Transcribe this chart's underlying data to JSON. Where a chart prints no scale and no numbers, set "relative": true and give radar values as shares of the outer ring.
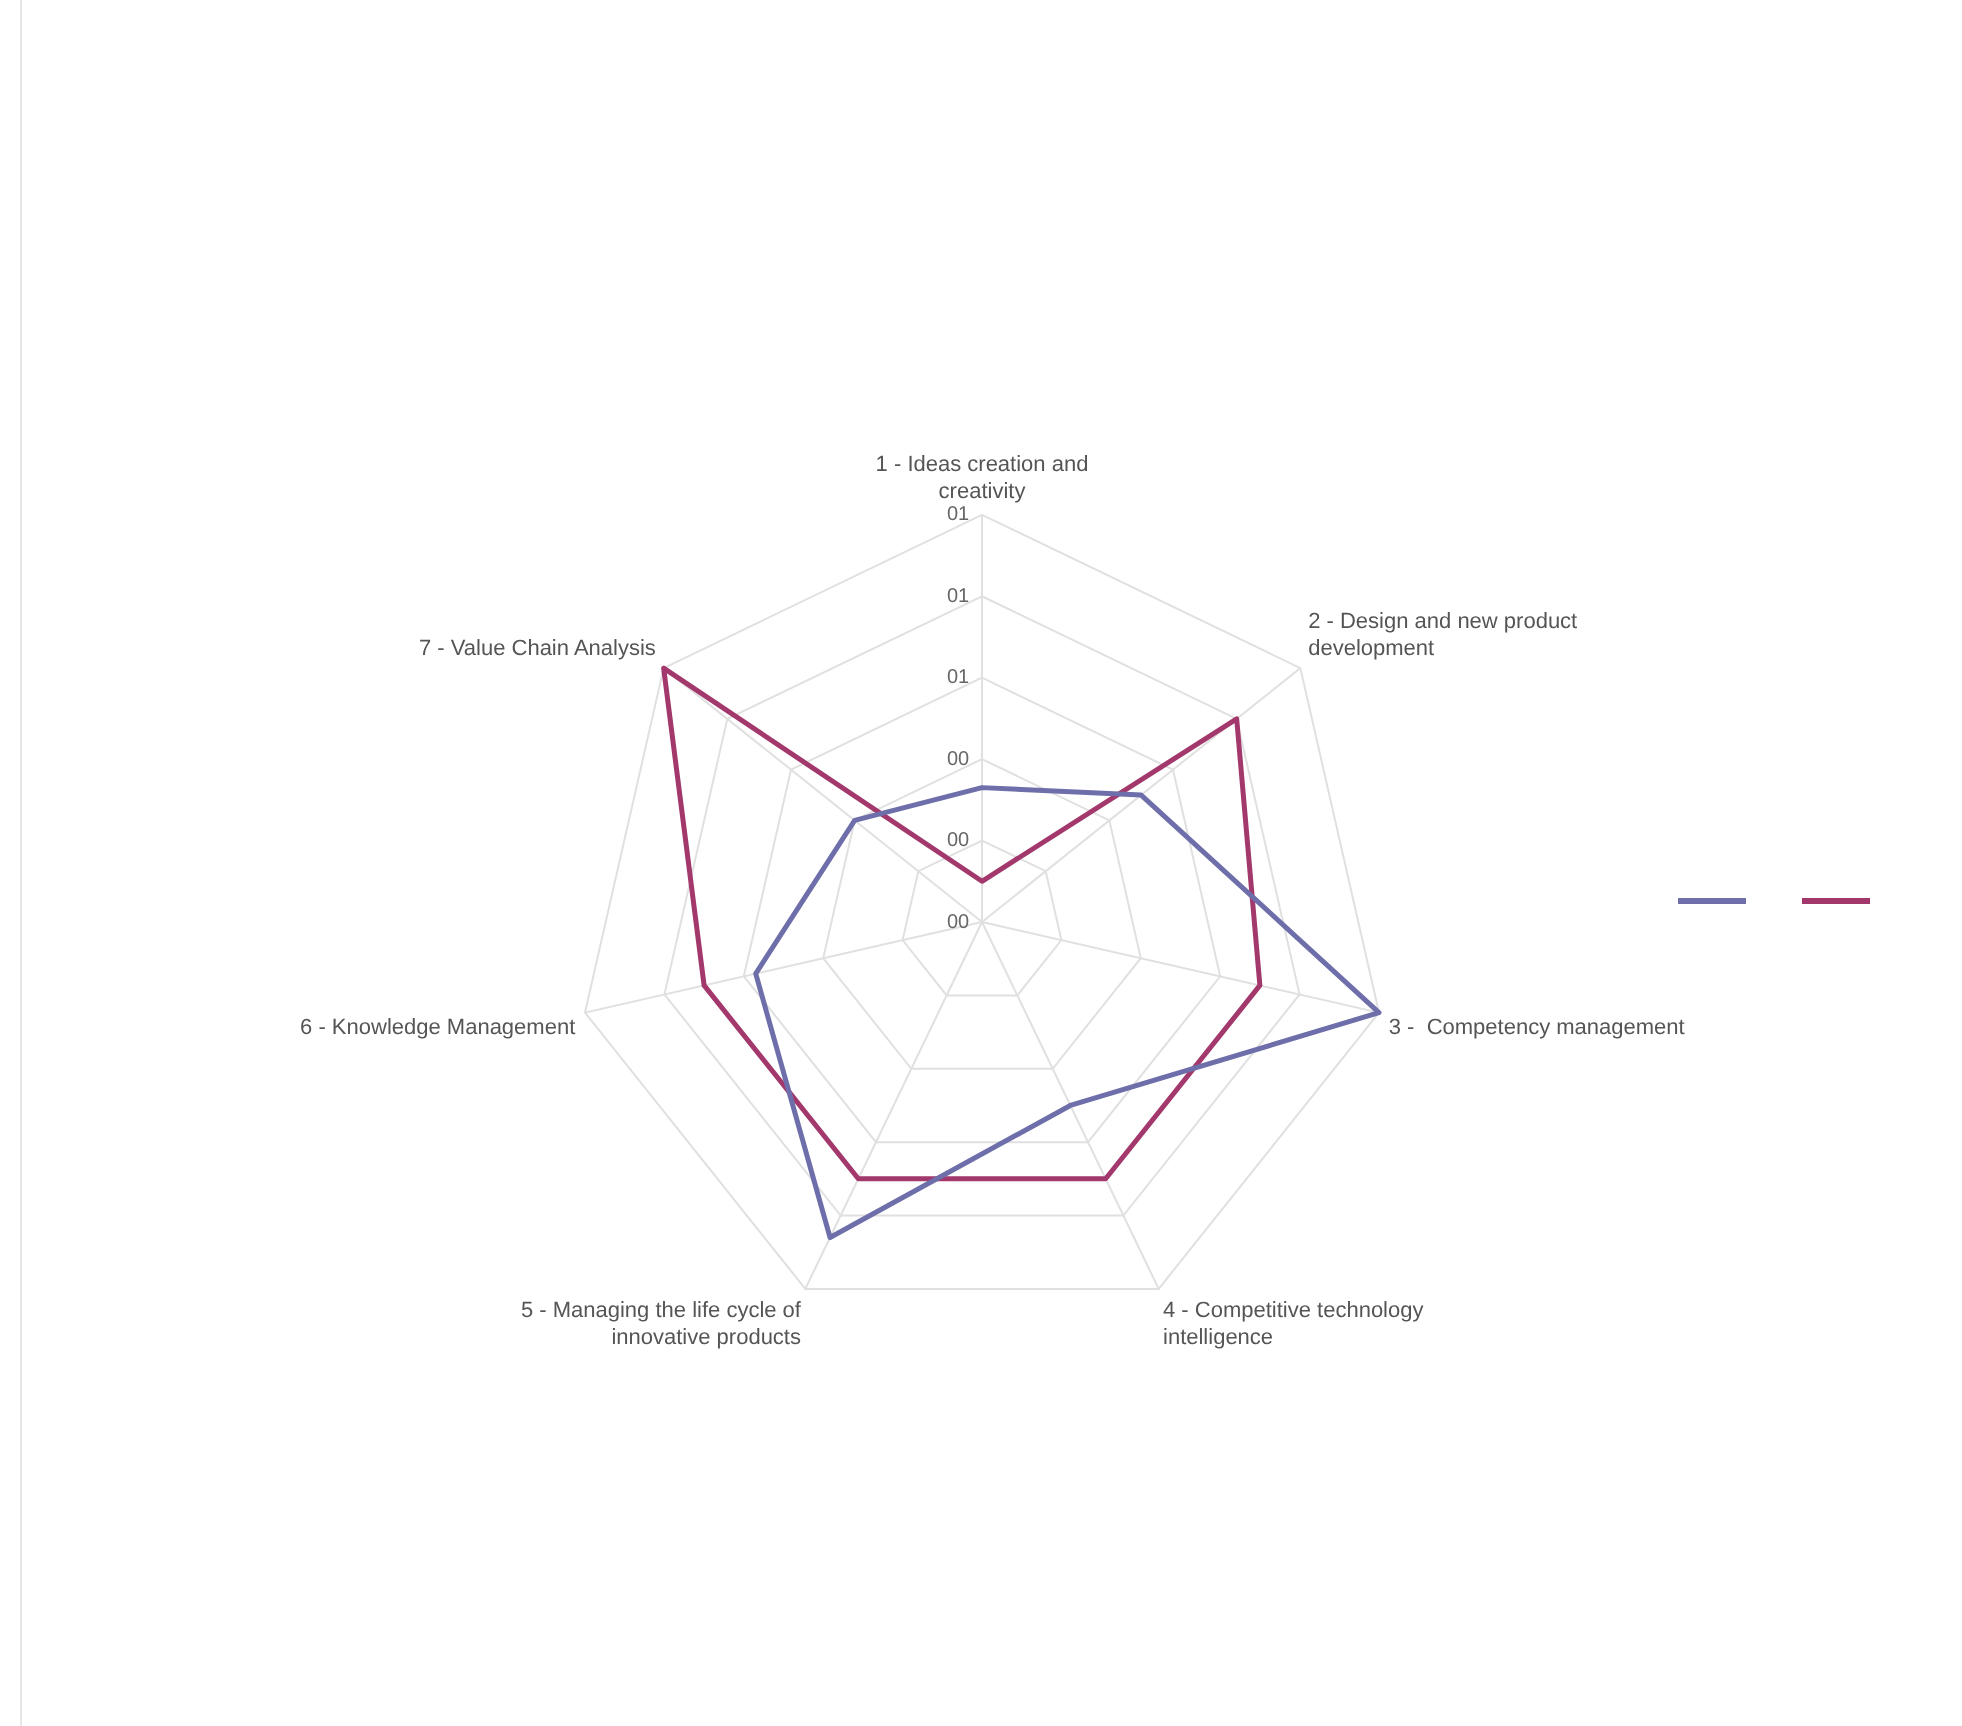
{
  "chart_data": {
    "type": "radar",
    "relative": true,
    "categories": [
      "1 - Ideas creation and creativity",
      "2 - Design and new product development",
      "3 -  Competency management",
      "4 - Competitive technology intelligence",
      "5 - Managing the life cycle of innovative products",
      "6 - Knowledge Management",
      "7 - Value Chain Analysis"
    ],
    "series": [
      {
        "color": "#6e6eab",
        "values": [
          0.33,
          0.5,
          1,
          0.5,
          0.86,
          0.57,
          0.4
        ]
      },
      {
        "color": "#a3386c",
        "values": [
          0.1,
          0.8,
          0.7,
          0.7,
          0.7,
          0.7,
          1
        ]
      }
    ],
    "annotations": [
      "00",
      "00",
      "00",
      "01",
      "01",
      "01"
    ],
    "grid": true,
    "marker": "none"
  }
}
